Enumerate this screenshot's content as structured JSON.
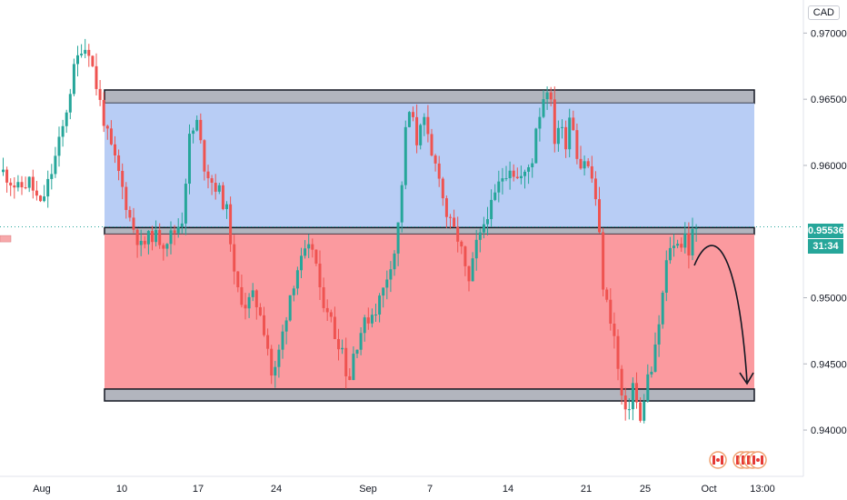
{
  "header": {
    "currency": "CAD"
  },
  "price_tag": {
    "price": "0.95536",
    "timer": "31:34"
  },
  "colors": {
    "up": "#26a69a",
    "down": "#ef5350",
    "upper_zone": "#b8cdf5",
    "lower_zone": "#fb9a9f",
    "band": "#b2b5be",
    "band_border": "#131722",
    "arrow": "#131722"
  },
  "events": {
    "icons": [
      "canada-flag-icon",
      "canada-flag-icon",
      "canada-flag-icon",
      "canada-flag-icon",
      "canada-flag-icon"
    ]
  },
  "chart_data": {
    "type": "candlestick",
    "y_ticks": [
      "0.97000",
      "0.96500",
      "0.96000",
      "0.95000",
      "0.94500",
      "0.94000"
    ],
    "x_ticks": [
      "Aug",
      "10",
      "17",
      "24",
      "Sep",
      "7",
      "14",
      "21",
      "25",
      "Oct",
      "13:00"
    ],
    "ylim": [
      0.9365,
      0.9725
    ],
    "grid": false,
    "zones": [
      {
        "kind": "band",
        "from": 0.9647,
        "to": 0.9657
      },
      {
        "kind": "resistance-zone",
        "from": 0.9553,
        "to": 0.9647
      },
      {
        "kind": "band",
        "from": 0.9548,
        "to": 0.9553
      },
      {
        "kind": "support-zone",
        "from": 0.9431,
        "to": 0.9548
      },
      {
        "kind": "band",
        "from": 0.9422,
        "to": 0.9431
      }
    ],
    "current_price": 0.95536,
    "path": [
      [
        0,
        0.9595
      ],
      [
        4,
        0.9582
      ],
      [
        7,
        0.9588
      ],
      [
        10,
        0.9569
      ],
      [
        13,
        0.9595
      ],
      [
        16,
        0.9628
      ],
      [
        19,
        0.9672
      ],
      [
        21,
        0.969
      ],
      [
        23,
        0.9688
      ],
      [
        25,
        0.966
      ],
      [
        28,
        0.9622
      ],
      [
        31,
        0.9594
      ],
      [
        34,
        0.956
      ],
      [
        37,
        0.9538
      ],
      [
        40,
        0.9548
      ],
      [
        43,
        0.9542
      ],
      [
        46,
        0.955
      ],
      [
        48,
        0.956
      ],
      [
        50,
        0.962
      ],
      [
        52,
        0.9632
      ],
      [
        54,
        0.96
      ],
      [
        56,
        0.9588
      ],
      [
        58,
        0.958
      ],
      [
        60,
        0.9565
      ],
      [
        61,
        0.9545
      ],
      [
        62,
        0.9515
      ],
      [
        63,
        0.9505
      ],
      [
        65,
        0.9495
      ],
      [
        67,
        0.95
      ],
      [
        69,
        0.949
      ],
      [
        71,
        0.9463
      ],
      [
        72,
        0.9442
      ],
      [
        73,
        0.9445
      ],
      [
        75,
        0.9473
      ],
      [
        77,
        0.9503
      ],
      [
        79,
        0.9522
      ],
      [
        81,
        0.9532
      ],
      [
        83,
        0.9538
      ],
      [
        84,
        0.9525
      ],
      [
        85,
        0.9502
      ],
      [
        87,
        0.9493
      ],
      [
        89,
        0.9472
      ],
      [
        91,
        0.9462
      ],
      [
        92,
        0.9445
      ],
      [
        93,
        0.944
      ],
      [
        94,
        0.9458
      ],
      [
        96,
        0.9475
      ],
      [
        98,
        0.9485
      ],
      [
        100,
        0.9492
      ],
      [
        102,
        0.9506
      ],
      [
        104,
        0.9527
      ],
      [
        105,
        0.9535
      ],
      [
        106,
        0.9555
      ],
      [
        107,
        0.9587
      ],
      [
        108,
        0.9625
      ],
      [
        109,
        0.964
      ],
      [
        110,
        0.9632
      ],
      [
        111,
        0.9618
      ],
      [
        112,
        0.9635
      ],
      [
        113,
        0.9632
      ],
      [
        115,
        0.9605
      ],
      [
        117,
        0.9595
      ],
      [
        118,
        0.9575
      ],
      [
        119,
        0.9563
      ],
      [
        120,
        0.9555
      ],
      [
        122,
        0.9545
      ],
      [
        123,
        0.9535
      ],
      [
        124,
        0.952
      ],
      [
        125,
        0.951
      ],
      [
        126,
        0.9525
      ],
      [
        127,
        0.954
      ],
      [
        128,
        0.9545
      ],
      [
        129,
        0.9556
      ],
      [
        130,
        0.9565
      ],
      [
        131,
        0.9568
      ],
      [
        133,
        0.9585
      ],
      [
        134,
        0.9592
      ],
      [
        136,
        0.96
      ],
      [
        138,
        0.959
      ],
      [
        140,
        0.9592
      ],
      [
        142,
        0.9605
      ],
      [
        143,
        0.963
      ],
      [
        144,
        0.964
      ],
      [
        145,
        0.9652
      ],
      [
        146,
        0.966
      ],
      [
        147,
        0.9645
      ],
      [
        148,
        0.962
      ],
      [
        149,
        0.963
      ],
      [
        150,
        0.9625
      ],
      [
        151,
        0.9618
      ],
      [
        152,
        0.9638
      ],
      [
        153,
        0.963
      ],
      [
        154,
        0.961
      ],
      [
        155,
        0.96
      ],
      [
        156,
        0.9605
      ],
      [
        157,
        0.9598
      ],
      [
        158,
        0.959
      ],
      [
        159,
        0.9575
      ],
      [
        160,
        0.9545
      ],
      [
        161,
        0.951
      ],
      [
        162,
        0.9495
      ],
      [
        163,
        0.9485
      ],
      [
        164,
        0.947
      ],
      [
        165,
        0.9445
      ],
      [
        166,
        0.9425
      ],
      [
        167,
        0.941
      ],
      [
        168,
        0.942
      ],
      [
        169,
        0.9435
      ],
      [
        170,
        0.942
      ],
      [
        171,
        0.9405
      ],
      [
        172,
        0.9425
      ],
      [
        173,
        0.944
      ],
      [
        174,
        0.9445
      ],
      [
        175,
        0.946
      ],
      [
        176,
        0.948
      ],
      [
        177,
        0.9502
      ],
      [
        178,
        0.9525
      ],
      [
        179,
        0.954
      ],
      [
        180,
        0.9538
      ],
      [
        181,
        0.9545
      ],
      [
        182,
        0.954
      ],
      [
        183,
        0.9548
      ],
      [
        184,
        0.9535
      ],
      [
        185,
        0.9548
      ],
      [
        186,
        0.955
      ]
    ]
  }
}
